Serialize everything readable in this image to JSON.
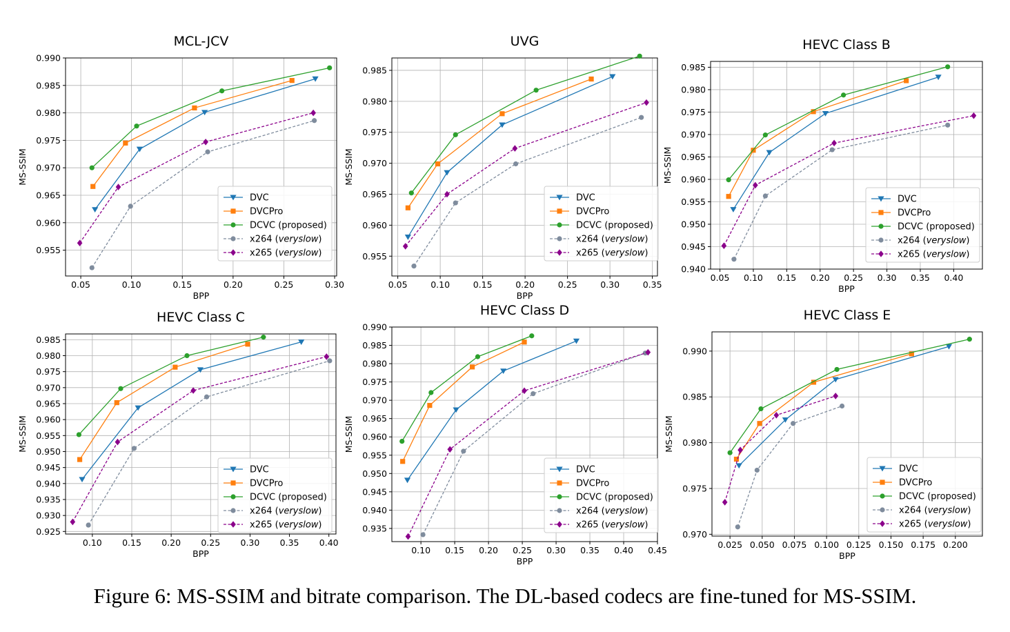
{
  "figure": {
    "caption": "Figure 6: MS-SSIM and bitrate comparison. The DL-based codecs are fine-tuned for MS-SSIM."
  },
  "chart_data": [
    {
      "type": "line",
      "title": "MCL-JCV",
      "xlabel": "BPP",
      "ylabel": "MS-SSIM",
      "xlim": [
        0.035,
        0.302
      ],
      "ylim": [
        0.9503,
        0.99
      ],
      "xticks": [
        "0.05",
        "0.10",
        "0.15",
        "0.20",
        "0.25",
        "0.30"
      ],
      "xtick_values": [
        0.05,
        0.1,
        0.15,
        0.2,
        0.25,
        0.3
      ],
      "yticks": [
        "0.955",
        "0.960",
        "0.965",
        "0.970",
        "0.975",
        "0.980",
        "0.985",
        "0.990"
      ],
      "ytick_values": [
        0.955,
        0.96,
        0.965,
        0.97,
        0.975,
        0.98,
        0.985,
        0.99
      ],
      "grid": true,
      "legend": "lower right",
      "series": [
        {
          "name": "DVC",
          "color": "#1f77b4",
          "marker": "tri",
          "dashed": false,
          "x": [
            0.064,
            0.108,
            0.172,
            0.281
          ],
          "y": [
            0.9624,
            0.9734,
            0.9801,
            0.9862
          ]
        },
        {
          "name": "DVCPro",
          "color": "#ff7f0e",
          "marker": "square",
          "dashed": false,
          "x": [
            0.062,
            0.094,
            0.162,
            0.258
          ],
          "y": [
            0.9666,
            0.9745,
            0.9809,
            0.9859
          ]
        },
        {
          "name": "DCVC (proposed)",
          "color": "#2ca02c",
          "marker": "circle",
          "dashed": false,
          "x": [
            0.061,
            0.105,
            0.189,
            0.295
          ],
          "y": [
            0.97,
            0.9776,
            0.984,
            0.9882
          ]
        },
        {
          "name": "x264 (veryslow)",
          "color": "#7f8c9d",
          "marker": "circle",
          "dashed": true,
          "x": [
            0.061,
            0.099,
            0.175,
            0.28
          ],
          "y": [
            0.9518,
            0.963,
            0.9729,
            0.9786
          ]
        },
        {
          "name": "x265 (veryslow)",
          "color": "#8b008b",
          "marker": "diamond",
          "dashed": true,
          "x": [
            0.049,
            0.087,
            0.173,
            0.279
          ],
          "y": [
            0.9563,
            0.9665,
            0.9747,
            0.98
          ]
        }
      ]
    },
    {
      "type": "line",
      "title": "UVG",
      "xlabel": "BPP",
      "ylabel": "MS-SSIM",
      "xlim": [
        0.043,
        0.356
      ],
      "ylim": [
        0.9518,
        0.987
      ],
      "xticks": [
        "0.05",
        "0.10",
        "0.15",
        "0.20",
        "0.25",
        "0.30",
        "0.35"
      ],
      "xtick_values": [
        0.05,
        0.1,
        0.15,
        0.2,
        0.25,
        0.3,
        0.35
      ],
      "yticks": [
        "0.955",
        "0.960",
        "0.965",
        "0.970",
        "0.975",
        "0.980",
        "0.985"
      ],
      "ytick_values": [
        0.955,
        0.96,
        0.965,
        0.97,
        0.975,
        0.98,
        0.985
      ],
      "grid": true,
      "legend": "lower right",
      "series": [
        {
          "name": "DVC",
          "color": "#1f77b4",
          "marker": "tri",
          "dashed": false,
          "x": [
            0.062,
            0.108,
            0.173,
            0.303
          ],
          "y": [
            0.9581,
            0.9685,
            0.9762,
            0.984
          ]
        },
        {
          "name": "DVCPro",
          "color": "#ff7f0e",
          "marker": "square",
          "dashed": false,
          "x": [
            0.062,
            0.097,
            0.173,
            0.278
          ],
          "y": [
            0.9628,
            0.9699,
            0.978,
            0.9836
          ]
        },
        {
          "name": "DCVC (proposed)",
          "color": "#2ca02c",
          "marker": "circle",
          "dashed": false,
          "x": [
            0.066,
            0.118,
            0.213,
            0.335
          ],
          "y": [
            0.9652,
            0.9746,
            0.9818,
            0.9873
          ]
        },
        {
          "name": "x264 (veryslow)",
          "color": "#7f8c9d",
          "marker": "circle",
          "dashed": true,
          "x": [
            0.069,
            0.118,
            0.189,
            0.337
          ],
          "y": [
            0.9534,
            0.9636,
            0.9699,
            0.9774
          ]
        },
        {
          "name": "x265 (veryslow)",
          "color": "#8b008b",
          "marker": "diamond",
          "dashed": true,
          "x": [
            0.059,
            0.108,
            0.188,
            0.343
          ],
          "y": [
            0.9566,
            0.965,
            0.9724,
            0.9798
          ]
        }
      ]
    },
    {
      "type": "line",
      "title": "HEVC Class B",
      "xlabel": "BPP",
      "ylabel": "MS-SSIM",
      "xlim": [
        0.036,
        0.443
      ],
      "ylim": [
        0.94,
        0.9863
      ],
      "xticks": [
        "0.05",
        "0.10",
        "0.15",
        "0.20",
        "0.25",
        "0.30",
        "0.35",
        "0.40"
      ],
      "xtick_values": [
        0.05,
        0.1,
        0.15,
        0.2,
        0.25,
        0.3,
        0.35,
        0.4
      ],
      "yticks": [
        "0.940",
        "0.945",
        "0.950",
        "0.955",
        "0.960",
        "0.965",
        "0.970",
        "0.975",
        "0.980",
        "0.985"
      ],
      "ytick_values": [
        0.94,
        0.945,
        0.95,
        0.955,
        0.96,
        0.965,
        0.97,
        0.975,
        0.98,
        0.985
      ],
      "grid": true,
      "legend": "lower right",
      "series": [
        {
          "name": "DVC",
          "color": "#1f77b4",
          "marker": "tri",
          "dashed": false,
          "x": [
            0.07,
            0.124,
            0.208,
            0.377
          ],
          "y": [
            0.9533,
            0.966,
            0.9747,
            0.9828
          ]
        },
        {
          "name": "DVCPro",
          "color": "#ff7f0e",
          "marker": "square",
          "dashed": false,
          "x": [
            0.063,
            0.1,
            0.19,
            0.329
          ],
          "y": [
            0.9562,
            0.9665,
            0.9751,
            0.982
          ]
        },
        {
          "name": "DCVC (proposed)",
          "color": "#2ca02c",
          "marker": "circle",
          "dashed": false,
          "x": [
            0.063,
            0.118,
            0.235,
            0.391
          ],
          "y": [
            0.9599,
            0.9699,
            0.9788,
            0.9851
          ]
        },
        {
          "name": "x264 (veryslow)",
          "color": "#7f8c9d",
          "marker": "circle",
          "dashed": true,
          "x": [
            0.071,
            0.118,
            0.218,
            0.391
          ],
          "y": [
            0.9422,
            0.9563,
            0.9666,
            0.9721
          ]
        },
        {
          "name": "x265 (veryslow)",
          "color": "#8b008b",
          "marker": "diamond",
          "dashed": true,
          "x": [
            0.056,
            0.103,
            0.221,
            0.43
          ],
          "y": [
            0.9452,
            0.9587,
            0.9681,
            0.9742
          ]
        }
      ]
    },
    {
      "type": "line",
      "title": "HEVC Class C",
      "xlabel": "BPP",
      "ylabel": "MS-SSIM",
      "xlim": [
        0.066,
        0.409
      ],
      "ylim": [
        0.9242,
        0.9868
      ],
      "xticks": [
        "0.10",
        "0.15",
        "0.20",
        "0.25",
        "0.30",
        "0.35",
        "0.40"
      ],
      "xtick_values": [
        0.1,
        0.15,
        0.2,
        0.25,
        0.3,
        0.35,
        0.4
      ],
      "yticks": [
        "0.925",
        "0.930",
        "0.935",
        "0.940",
        "0.945",
        "0.950",
        "0.955",
        "0.960",
        "0.965",
        "0.970",
        "0.975",
        "0.980",
        "0.985"
      ],
      "ytick_values": [
        0.925,
        0.93,
        0.935,
        0.94,
        0.945,
        0.95,
        0.955,
        0.96,
        0.965,
        0.97,
        0.975,
        0.98,
        0.985
      ],
      "grid": true,
      "legend": "lower right",
      "series": [
        {
          "name": "DVC",
          "color": "#1f77b4",
          "marker": "tri",
          "dashed": false,
          "x": [
            0.087,
            0.158,
            0.237,
            0.365
          ],
          "y": [
            0.9413,
            0.9637,
            0.9756,
            0.9843
          ]
        },
        {
          "name": "DVCPro",
          "color": "#ff7f0e",
          "marker": "square",
          "dashed": false,
          "x": [
            0.084,
            0.131,
            0.205,
            0.297
          ],
          "y": [
            0.9475,
            0.9653,
            0.9764,
            0.9836
          ]
        },
        {
          "name": "DCVC (proposed)",
          "color": "#2ca02c",
          "marker": "circle",
          "dashed": false,
          "x": [
            0.083,
            0.136,
            0.22,
            0.317
          ],
          "y": [
            0.9553,
            0.9697,
            0.98,
            0.9858
          ]
        },
        {
          "name": "x264 (veryslow)",
          "color": "#7f8c9d",
          "marker": "circle",
          "dashed": true,
          "x": [
            0.095,
            0.153,
            0.245,
            0.401
          ],
          "y": [
            0.927,
            0.951,
            0.9671,
            0.9784
          ]
        },
        {
          "name": "x265 (veryslow)",
          "color": "#8b008b",
          "marker": "diamond",
          "dashed": true,
          "x": [
            0.075,
            0.132,
            0.228,
            0.397
          ],
          "y": [
            0.928,
            0.953,
            0.9691,
            0.9797
          ]
        }
      ]
    },
    {
      "type": "line",
      "title": "HEVC Class D",
      "xlabel": "BPP",
      "ylabel": "MS-SSIM",
      "xlim": [
        0.057,
        0.45
      ],
      "ylim": [
        0.9314,
        0.99
      ],
      "xticks": [
        "0.10",
        "0.15",
        "0.20",
        "0.25",
        "0.30",
        "0.35",
        "0.40",
        "0.45"
      ],
      "xtick_values": [
        0.1,
        0.15,
        0.2,
        0.25,
        0.3,
        0.35,
        0.4,
        0.45
      ],
      "yticks": [
        "0.935",
        "0.940",
        "0.945",
        "0.950",
        "0.955",
        "0.960",
        "0.965",
        "0.970",
        "0.975",
        "0.980",
        "0.985",
        "0.990"
      ],
      "ytick_values": [
        0.935,
        0.94,
        0.945,
        0.95,
        0.955,
        0.96,
        0.965,
        0.97,
        0.975,
        0.98,
        0.985,
        0.99
      ],
      "grid": true,
      "legend": "lower right",
      "series": [
        {
          "name": "DVC",
          "color": "#1f77b4",
          "marker": "tri",
          "dashed": false,
          "x": [
            0.08,
            0.152,
            0.222,
            0.33
          ],
          "y": [
            0.9482,
            0.9674,
            0.978,
            0.9862
          ]
        },
        {
          "name": "DVCPro",
          "color": "#ff7f0e",
          "marker": "square",
          "dashed": false,
          "x": [
            0.073,
            0.113,
            0.176,
            0.253
          ],
          "y": [
            0.9533,
            0.9686,
            0.9791,
            0.9859
          ]
        },
        {
          "name": "DCVC (proposed)",
          "color": "#2ca02c",
          "marker": "circle",
          "dashed": false,
          "x": [
            0.072,
            0.115,
            0.184,
            0.264
          ],
          "y": [
            0.9588,
            0.9721,
            0.9819,
            0.9876
          ]
        },
        {
          "name": "x264 (veryslow)",
          "color": "#7f8c9d",
          "marker": "circle",
          "dashed": true,
          "x": [
            0.103,
            0.163,
            0.266,
            0.432
          ],
          "y": [
            0.9333,
            0.9561,
            0.9718,
            0.9829
          ]
        },
        {
          "name": "x265 (veryslow)",
          "color": "#8b008b",
          "marker": "diamond",
          "dashed": true,
          "x": [
            0.081,
            0.143,
            0.253,
            0.436
          ],
          "y": [
            0.9328,
            0.9566,
            0.9726,
            0.9831
          ]
        }
      ]
    },
    {
      "type": "line",
      "title": "HEVC Class E",
      "xlabel": "BPP",
      "ylabel": "MS-SSIM",
      "xlim": [
        0.011,
        0.221
      ],
      "ylim": [
        0.9698,
        0.9921
      ],
      "xticks": [
        "0.025",
        "0.050",
        "0.075",
        "0.100",
        "0.125",
        "0.150",
        "0.175",
        "0.200"
      ],
      "xtick_values": [
        0.025,
        0.05,
        0.075,
        0.1,
        0.125,
        0.15,
        0.175,
        0.2
      ],
      "yticks": [
        "0.970",
        "0.975",
        "0.980",
        "0.985",
        "0.990"
      ],
      "ytick_values": [
        0.97,
        0.975,
        0.98,
        0.985,
        0.99
      ],
      "grid": true,
      "legend": "lower right",
      "series": [
        {
          "name": "DVC",
          "color": "#1f77b4",
          "marker": "tri",
          "dashed": false,
          "x": [
            0.032,
            0.068,
            0.107,
            0.195
          ],
          "y": [
            0.9775,
            0.9825,
            0.9869,
            0.9905
          ]
        },
        {
          "name": "DVCPro",
          "color": "#ff7f0e",
          "marker": "square",
          "dashed": false,
          "x": [
            0.03,
            0.048,
            0.09,
            0.166
          ],
          "y": [
            0.9782,
            0.9821,
            0.9866,
            0.9897
          ]
        },
        {
          "name": "DCVC (proposed)",
          "color": "#2ca02c",
          "marker": "circle",
          "dashed": false,
          "x": [
            0.025,
            0.049,
            0.108,
            0.211
          ],
          "y": [
            0.9789,
            0.9837,
            0.988,
            0.9913
          ]
        },
        {
          "name": "x264 (veryslow)",
          "color": "#7f8c9d",
          "marker": "circle",
          "dashed": true,
          "x": [
            0.031,
            0.046,
            0.074,
            0.112
          ],
          "y": [
            0.9708,
            0.977,
            0.9821,
            0.984
          ]
        },
        {
          "name": "x265 (veryslow)",
          "color": "#8b008b",
          "marker": "diamond",
          "dashed": true,
          "x": [
            0.021,
            0.033,
            0.061,
            0.107
          ],
          "y": [
            0.9735,
            0.9792,
            0.983,
            0.9851
          ]
        }
      ]
    }
  ]
}
